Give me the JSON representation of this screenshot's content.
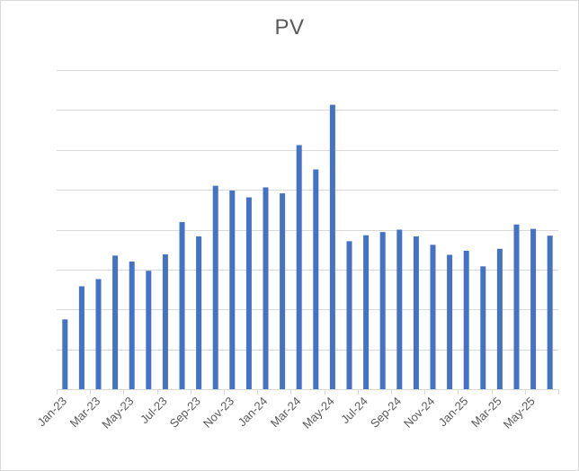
{
  "chart_data": {
    "type": "bar",
    "title": "PV",
    "xlabel": "",
    "ylabel": "",
    "ylim": [
      0,
      8
    ],
    "y_tick_labels_shown": false,
    "grid": true,
    "legend": "none",
    "bar_color": "#4472c4",
    "gridline_color": "#d9d9d9",
    "categories": [
      "Jan-23",
      "Feb-23",
      "Mar-23",
      "Apr-23",
      "May-23",
      "Jun-23",
      "Jul-23",
      "Aug-23",
      "Sep-23",
      "Oct-23",
      "Nov-23",
      "Dec-23",
      "Jan-24",
      "Feb-24",
      "Mar-24",
      "Apr-24",
      "May-24",
      "Jun-24",
      "Jul-24",
      "Aug-24",
      "Sep-24",
      "Oct-24",
      "Nov-24",
      "Dec-24",
      "Jan-25",
      "Feb-25",
      "Mar-25",
      "Apr-25",
      "May-25",
      "Jun-25"
    ],
    "x_tick_labels": [
      "Jan-23",
      "Mar-23",
      "May-23",
      "Jul-23",
      "Sep-23",
      "Nov-23",
      "Jan-24",
      "Mar-24",
      "May-24",
      "Jul-24",
      "Sep-24",
      "Nov-24",
      "Jan-25",
      "Mar-25",
      "May-25"
    ],
    "values": [
      1.75,
      2.58,
      2.76,
      3.35,
      3.2,
      2.97,
      3.38,
      4.19,
      3.83,
      5.1,
      4.98,
      4.81,
      5.06,
      4.91,
      6.12,
      5.51,
      7.13,
      3.71,
      3.86,
      3.94,
      4.0,
      3.83,
      3.62,
      3.37,
      3.47,
      3.08,
      3.52,
      4.13,
      4.02,
      3.85
    ]
  }
}
